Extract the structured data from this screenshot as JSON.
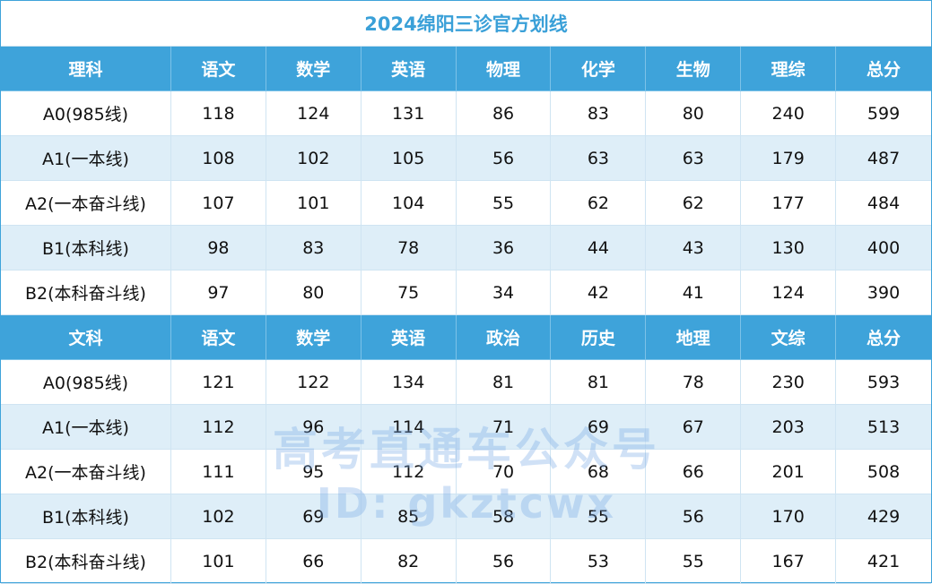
{
  "title": "2024绵阳三诊官方划线",
  "watermark": {
    "line1": "高考直通车公众号",
    "line2": "ID: gkztcwx"
  },
  "sections": [
    {
      "header": [
        "理科",
        "语文",
        "数学",
        "英语",
        "物理",
        "化学",
        "生物",
        "理综",
        "总分"
      ],
      "rows": [
        [
          "A0(985线)",
          118,
          124,
          131,
          86,
          83,
          80,
          240,
          599
        ],
        [
          "A1(一本线)",
          108,
          102,
          105,
          56,
          63,
          63,
          179,
          487
        ],
        [
          "A2(一本奋斗线)",
          107,
          101,
          104,
          55,
          62,
          62,
          177,
          484
        ],
        [
          "B1(本科线)",
          98,
          83,
          78,
          36,
          44,
          43,
          130,
          400
        ],
        [
          "B2(本科奋斗线)",
          97,
          80,
          75,
          34,
          42,
          41,
          124,
          390
        ]
      ]
    },
    {
      "header": [
        "文科",
        "语文",
        "数学",
        "英语",
        "政治",
        "历史",
        "地理",
        "文综",
        "总分"
      ],
      "rows": [
        [
          "A0(985线)",
          121,
          122,
          134,
          81,
          81,
          78,
          230,
          593
        ],
        [
          "A1(一本线)",
          112,
          96,
          114,
          71,
          69,
          67,
          203,
          513
        ],
        [
          "A2(一本奋斗线)",
          111,
          95,
          112,
          70,
          68,
          66,
          201,
          508
        ],
        [
          "B1(本科线)",
          102,
          69,
          85,
          58,
          55,
          56,
          170,
          429
        ],
        [
          "B2(本科奋斗线)",
          101,
          66,
          82,
          56,
          53,
          55,
          167,
          421
        ]
      ]
    }
  ]
}
